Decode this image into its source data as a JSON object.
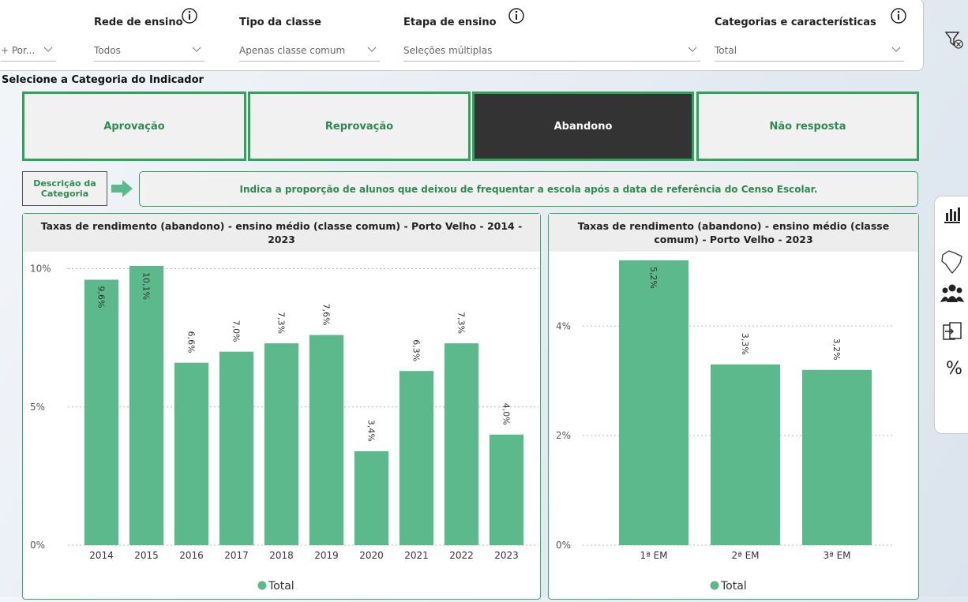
{
  "filters": [
    {
      "label": null,
      "value": "+ Por..."
    },
    {
      "label": "Rede de ensino",
      "value": "Todos"
    },
    {
      "label": "Tipo da classe",
      "value": "Apenas classe comum"
    },
    {
      "label": "Etapa de ensino",
      "value": "Seleções múltiplas"
    },
    {
      "label": "Categorias e características",
      "value": "Total"
    }
  ],
  "section_label": "Selecione a Categoria do Indicador",
  "category_buttons": [
    "Aprovação",
    "Reprovação",
    "Abandono",
    "Não resposta"
  ],
  "active_button": "Abandono",
  "description": {
    "label": "Descrição da Categoria",
    "text": "Indica a proporção de alunos que deixou de frequentar a escola após a data de referência do Censo Escolar."
  },
  "percent_button": "%",
  "chart_data": [
    {
      "type": "bar",
      "title": "Taxas de rendimento (abandono) - ensino médio (classe comum) - Porto Velho - 2014 - 2023",
      "categories": [
        "2014",
        "2015",
        "2016",
        "2017",
        "2018",
        "2019",
        "2020",
        "2021",
        "2022",
        "2023"
      ],
      "series": [
        {
          "name": "Total",
          "color": "#5bb98c",
          "values": [
            9.6,
            10.1,
            6.6,
            7.0,
            7.3,
            7.6,
            3.4,
            6.3,
            7.3,
            4.0
          ],
          "value_labels": [
            "9,6%",
            "10,1%",
            "6,6%",
            "7,0%",
            "7,3%",
            "7,6%",
            "3,4%",
            "6,3%",
            "7,3%",
            "4,0%"
          ]
        }
      ],
      "ylim": [
        0,
        10.5
      ],
      "yticks": [
        {
          "value": 0,
          "label": "0%"
        },
        {
          "value": 5,
          "label": "5%"
        },
        {
          "value": 10,
          "label": "10%"
        }
      ],
      "grid": true,
      "legend": "bottom"
    },
    {
      "type": "bar",
      "title": "Taxas de rendimento (abandono) - ensino médio (classe comum) - Porto Velho - 2023",
      "categories": [
        "1ª EM",
        "2ª EM",
        "3ª EM"
      ],
      "series": [
        {
          "name": "Total",
          "color": "#5bb98c",
          "values": [
            5.2,
            3.3,
            3.2
          ],
          "value_labels": [
            "5,2%",
            "3,3%",
            "3,2%"
          ]
        }
      ],
      "ylim": [
        0,
        5.3
      ],
      "yticks": [
        {
          "value": 0,
          "label": "0%"
        },
        {
          "value": 2,
          "label": "2%"
        },
        {
          "value": 4,
          "label": "4%"
        }
      ],
      "grid": true,
      "legend": "bottom"
    }
  ]
}
